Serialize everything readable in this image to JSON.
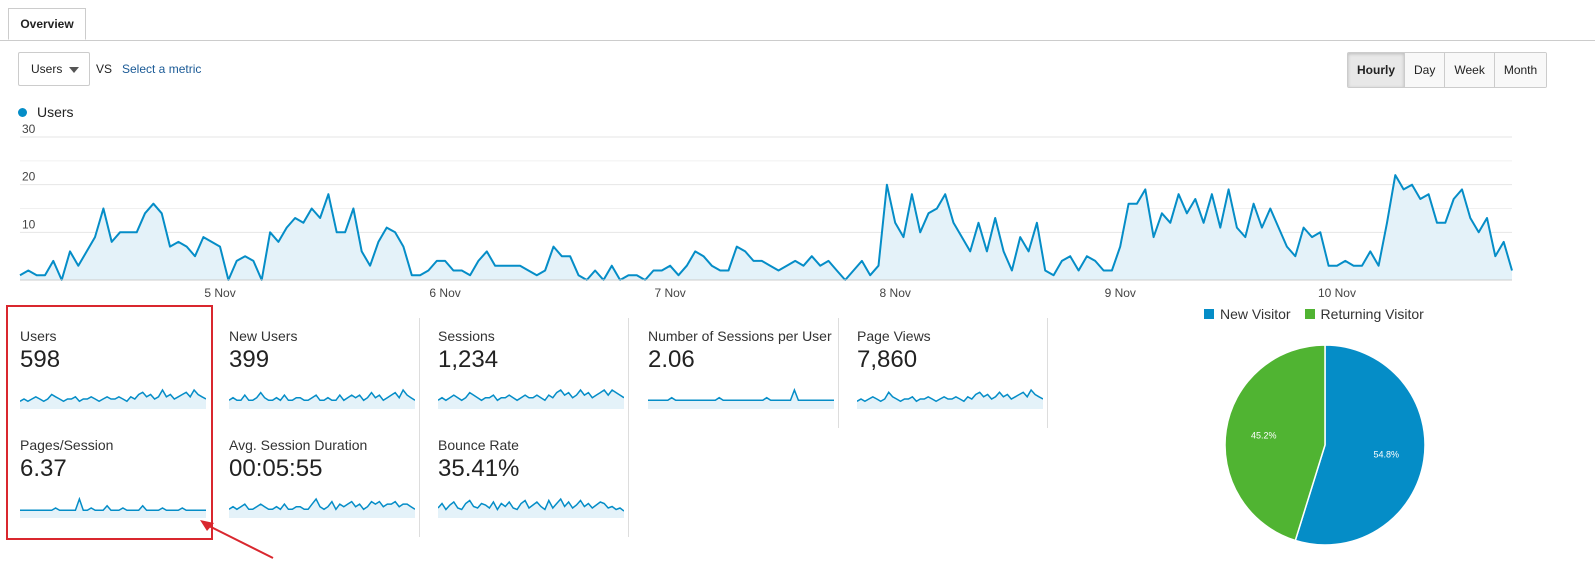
{
  "tabs": {
    "overview": "Overview"
  },
  "metric_select": {
    "value": "Users"
  },
  "vs_label": "VS",
  "select_metric_link": "Select a metric",
  "granularity": [
    "Hourly",
    "Day",
    "Week",
    "Month"
  ],
  "chart_legend": "Users",
  "colors": {
    "accent": "#058dc7",
    "green": "#50b432",
    "red": "#d9272e",
    "fill": "#e4f2f9"
  },
  "chart_data": {
    "type": "area",
    "series": [
      {
        "name": "Users",
        "values": [
          1,
          2,
          1,
          1,
          4,
          0,
          6,
          3,
          6,
          9,
          15,
          8,
          10,
          10,
          10,
          14,
          16,
          14,
          7,
          8,
          7,
          5,
          9,
          8,
          7,
          0,
          4,
          5,
          4,
          0,
          10,
          8,
          11,
          13,
          12,
          15,
          13,
          18,
          10,
          10,
          15,
          6,
          3,
          8,
          11,
          10,
          7,
          1,
          1,
          2,
          4,
          4,
          2,
          2,
          1,
          4,
          6,
          3,
          3,
          3,
          3,
          2,
          1,
          2,
          7,
          5,
          5,
          1,
          0,
          2,
          0,
          3,
          0,
          1,
          1,
          0,
          2,
          2,
          3,
          1,
          3,
          6,
          5,
          3,
          2,
          2,
          7,
          6,
          4,
          4,
          3,
          2,
          3,
          4,
          3,
          5,
          3,
          4,
          2,
          0,
          2,
          4,
          1,
          3,
          20,
          12,
          9,
          18,
          10,
          14,
          15,
          18,
          12,
          9,
          6,
          12,
          6,
          13,
          6,
          2,
          9,
          6,
          12,
          2,
          1,
          4,
          5,
          2,
          5,
          4,
          2,
          2,
          7,
          16,
          16,
          19,
          9,
          14,
          12,
          18,
          14,
          17,
          12,
          18,
          11,
          19,
          11,
          9,
          16,
          11,
          15,
          11,
          7,
          5,
          11,
          9,
          10,
          3,
          3,
          4,
          3,
          3,
          6,
          3,
          12,
          22,
          19,
          20,
          17,
          18,
          12,
          12,
          17,
          19,
          13,
          10,
          13,
          5,
          8,
          2
        ]
      }
    ],
    "x_ticks": [
      "5 Nov",
      "6 Nov",
      "7 Nov",
      "8 Nov",
      "9 Nov",
      "10 Nov"
    ],
    "x_tick_index": [
      24,
      51,
      78,
      105,
      132,
      158
    ],
    "y_ticks": [
      "30",
      "20",
      "10"
    ],
    "ylim": [
      0,
      30
    ],
    "grid": true
  },
  "metrics": [
    {
      "name": "Users",
      "value": "598",
      "spark": [
        3,
        4,
        3,
        4,
        5,
        4,
        3,
        4,
        6,
        5,
        4,
        3,
        4,
        4,
        5,
        3,
        4,
        4,
        5,
        4,
        3,
        4,
        5,
        4,
        4,
        5,
        4,
        3,
        5,
        4,
        6,
        7,
        5,
        6,
        4,
        5,
        8,
        5,
        6,
        4,
        5,
        6,
        7,
        5,
        8,
        6,
        5,
        4
      ]
    },
    {
      "name": "New Users",
      "value": "399",
      "spark": [
        3,
        4,
        3,
        3,
        5,
        3,
        3,
        4,
        6,
        4,
        3,
        3,
        4,
        3,
        5,
        3,
        3,
        4,
        4,
        3,
        3,
        4,
        5,
        3,
        3,
        4,
        3,
        3,
        5,
        3,
        4,
        5,
        4,
        5,
        3,
        4,
        6,
        4,
        5,
        3,
        4,
        5,
        6,
        4,
        7,
        5,
        4,
        3
      ]
    },
    {
      "name": "Sessions",
      "value": "1,234",
      "spark": [
        3,
        4,
        3,
        4,
        5,
        4,
        3,
        4,
        6,
        5,
        4,
        3,
        4,
        4,
        5,
        3,
        4,
        4,
        5,
        4,
        3,
        4,
        5,
        4,
        4,
        5,
        4,
        3,
        5,
        4,
        6,
        7,
        5,
        6,
        4,
        5,
        7,
        5,
        6,
        4,
        5,
        6,
        7,
        5,
        7,
        6,
        5,
        4
      ]
    },
    {
      "name": "Number of Sessions per User",
      "value": "2.06",
      "spark": [
        3,
        3,
        3,
        3,
        3,
        3,
        4,
        3,
        3,
        3,
        3,
        3,
        3,
        3,
        3,
        3,
        3,
        3,
        4,
        3,
        3,
        3,
        3,
        3,
        3,
        3,
        3,
        3,
        3,
        3,
        4,
        3,
        3,
        3,
        3,
        3,
        3,
        7,
        3,
        3,
        3,
        3,
        3,
        3,
        3,
        3,
        3,
        3
      ]
    },
    {
      "name": "Page Views",
      "value": "7,860",
      "spark": [
        3,
        4,
        3,
        4,
        5,
        4,
        3,
        4,
        7,
        5,
        4,
        3,
        4,
        4,
        5,
        3,
        4,
        4,
        5,
        4,
        3,
        4,
        5,
        4,
        4,
        5,
        4,
        3,
        5,
        4,
        6,
        7,
        5,
        6,
        4,
        5,
        7,
        5,
        6,
        4,
        5,
        6,
        7,
        5,
        8,
        6,
        5,
        4
      ]
    },
    {
      "name": "Pages/Session",
      "value": "6.37",
      "spark": [
        3,
        3,
        3,
        3,
        3,
        3,
        3,
        3,
        3,
        4,
        3,
        3,
        3,
        3,
        3,
        8,
        3,
        3,
        4,
        3,
        3,
        3,
        5,
        3,
        3,
        3,
        4,
        3,
        3,
        3,
        3,
        5,
        3,
        3,
        3,
        3,
        4,
        3,
        3,
        3,
        3,
        4,
        3,
        3,
        3,
        3,
        3,
        3
      ]
    },
    {
      "name": "Avg. Session Duration",
      "value": "00:05:55",
      "spark": [
        3,
        4,
        3,
        4,
        5,
        3,
        3,
        4,
        5,
        4,
        3,
        3,
        4,
        3,
        5,
        3,
        3,
        4,
        4,
        3,
        3,
        5,
        7,
        4,
        3,
        4,
        6,
        3,
        5,
        4,
        5,
        6,
        4,
        5,
        3,
        4,
        6,
        5,
        6,
        4,
        5,
        5,
        6,
        4,
        5,
        5,
        4,
        3
      ]
    },
    {
      "name": "Bounce Rate",
      "value": "35.41%",
      "spark": [
        6,
        9,
        5,
        8,
        10,
        6,
        5,
        9,
        11,
        7,
        6,
        9,
        8,
        6,
        10,
        5,
        9,
        7,
        10,
        6,
        5,
        9,
        11,
        6,
        8,
        10,
        7,
        5,
        11,
        6,
        9,
        12,
        7,
        10,
        6,
        8,
        11,
        7,
        9,
        6,
        8,
        10,
        9,
        6,
        7,
        5,
        6,
        4
      ]
    }
  ],
  "pie": {
    "legend": [
      "New Visitor",
      "Returning Visitor"
    ],
    "slices": [
      {
        "label": "New Visitor",
        "value": 54.8,
        "text": "54.8%",
        "color": "#058dc7"
      },
      {
        "label": "Returning Visitor",
        "value": 45.2,
        "text": "45.2%",
        "color": "#50b432"
      }
    ]
  }
}
